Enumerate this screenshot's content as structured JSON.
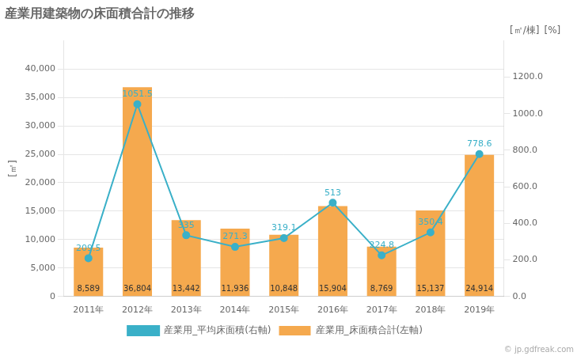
{
  "chart_data": {
    "type": "bar",
    "title": "産業用建築物の床面積合計の推移",
    "categories": [
      "2011年",
      "2012年",
      "2013年",
      "2014年",
      "2015年",
      "2016年",
      "2017年",
      "2018年",
      "2019年"
    ],
    "series": [
      {
        "name": "産業用_床面積合計(左軸)",
        "type": "bar",
        "color": "#f5a94e",
        "values": [
          8589,
          36804,
          13442,
          11936,
          10848,
          15904,
          8769,
          15137,
          24914
        ],
        "value_labels": [
          "8,589",
          "36,804",
          "13,442",
          "11,936",
          "10,848",
          "15,904",
          "8,769",
          "15,137",
          "24,914"
        ]
      },
      {
        "name": "産業用_平均床面積(右軸)",
        "type": "line",
        "color": "#3ab0c8",
        "axis": "y2",
        "marker": "circle",
        "values": [
          209.5,
          1051.5,
          335,
          271.3,
          319.1,
          513,
          224.8,
          350.4,
          778.6
        ]
      }
    ],
    "ylabel": "[㎡]",
    "y2label": "[㎡/棟]",
    "annotations": [
      "[%]",
      "© jp.gdfreak.com"
    ],
    "ylim": [
      0,
      45000
    ],
    "yticks": [
      0,
      {
        "value": 5000,
        "label": "5,000"
      },
      {
        "value": 10000,
        "label": "10,000"
      },
      {
        "value": 15000,
        "label": "15,000"
      },
      {
        "value": 20000,
        "label": "20,000"
      },
      {
        "value": 25000,
        "label": "25,000"
      },
      {
        "value": 30000,
        "label": "30,000"
      },
      {
        "value": 35000,
        "label": "35,000"
      },
      {
        "value": 40000,
        "label": "40,000"
      }
    ],
    "y2lim": [
      0,
      1400
    ],
    "y2ticks": [
      {
        "value": 0,
        "label": "0.0"
      },
      {
        "value": 200,
        "label": "200.0"
      },
      {
        "value": 400,
        "label": "400.0"
      },
      {
        "value": 600,
        "label": "600.0"
      },
      {
        "value": 800,
        "label": "800.0"
      },
      {
        "value": 1000,
        "label": "1000.0"
      },
      {
        "value": 1200,
        "label": "1200.0"
      }
    ],
    "grid": true,
    "legend": "bottom",
    "data_labels": true
  }
}
